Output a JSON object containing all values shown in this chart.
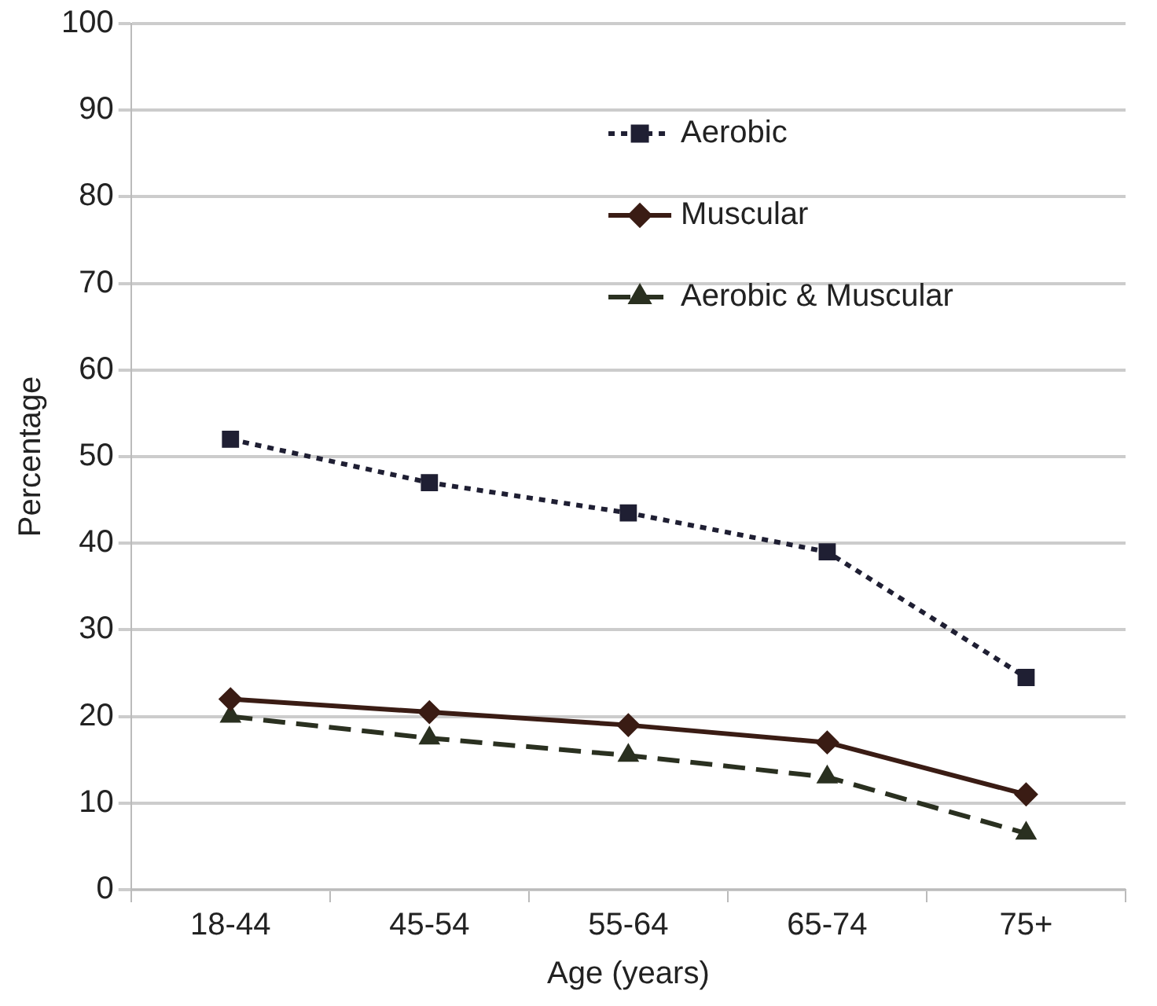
{
  "chart_data": {
    "type": "line",
    "xlabel": "Age (years)",
    "ylabel": "Percentage",
    "categories": [
      "18-44",
      "45-54",
      "55-64",
      "65-74",
      "75+"
    ],
    "series": [
      {
        "name": "Aerobic",
        "color": "#1f1f33",
        "values": [
          52,
          47,
          43.5,
          39,
          24.5
        ],
        "marker": "square",
        "line_style": "dotted"
      },
      {
        "name": "Muscular",
        "color": "#3a1c14",
        "values": [
          22,
          20.5,
          19,
          17,
          11
        ],
        "marker": "diamond",
        "line_style": "solid"
      },
      {
        "name": "Aerobic & Muscular",
        "color": "#2a3020",
        "values": [
          20,
          17.5,
          15.5,
          13,
          6.5
        ],
        "marker": "triangle",
        "line_style": "dashed"
      }
    ],
    "ylim": [
      0,
      100
    ],
    "yticks": [
      0,
      10,
      20,
      30,
      40,
      50,
      60,
      70,
      80,
      90,
      100
    ],
    "grid": "y",
    "legend": "top right"
  }
}
